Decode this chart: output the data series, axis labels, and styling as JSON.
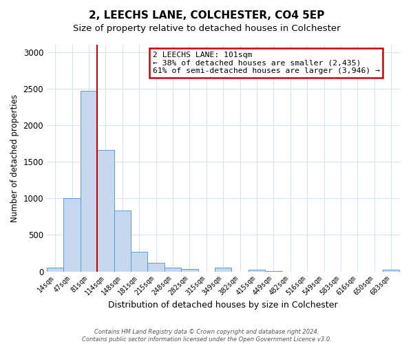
{
  "title": "2, LEECHS LANE, COLCHESTER, CO4 5EP",
  "subtitle": "Size of property relative to detached houses in Colchester",
  "xlabel": "Distribution of detached houses by size in Colchester",
  "ylabel": "Number of detached properties",
  "bar_labels": [
    "14sqm",
    "47sqm",
    "81sqm",
    "114sqm",
    "148sqm",
    "181sqm",
    "215sqm",
    "248sqm",
    "282sqm",
    "315sqm",
    "349sqm",
    "382sqm",
    "415sqm",
    "449sqm",
    "482sqm",
    "516sqm",
    "549sqm",
    "583sqm",
    "616sqm",
    "650sqm",
    "683sqm"
  ],
  "bar_heights": [
    55,
    1000,
    2470,
    1660,
    830,
    270,
    120,
    55,
    35,
    0,
    55,
    0,
    20,
    10,
    0,
    0,
    0,
    0,
    0,
    0,
    20
  ],
  "bar_color": "#c5d8ed",
  "bar_edge_color": "#5b9bd5",
  "vline_x_index": 2,
  "vline_color": "#cc0000",
  "ylim": [
    0,
    3100
  ],
  "yticks": [
    0,
    500,
    1000,
    1500,
    2000,
    2500,
    3000
  ],
  "annotation_title": "2 LEECHS LANE: 101sqm",
  "annotation_line1": "← 38% of detached houses are smaller (2,435)",
  "annotation_line2": "61% of semi-detached houses are larger (3,946) →",
  "annotation_box_color": "#ffffff",
  "annotation_box_edge": "#cc0000",
  "footer1": "Contains HM Land Registry data © Crown copyright and database right 2024.",
  "footer2": "Contains public sector information licensed under the Open Government Licence v3.0.",
  "bg_color": "#ffffff",
  "grid_color": "#d5e4f0"
}
